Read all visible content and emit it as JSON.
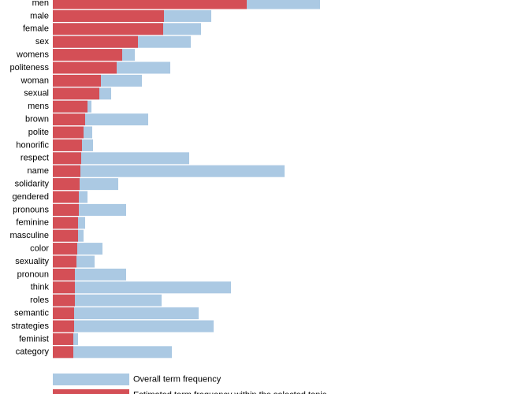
{
  "chart_data": {
    "type": "bar",
    "orientation": "horizontal",
    "categories": [
      "men",
      "male",
      "female",
      "sex",
      "womens",
      "politeness",
      "woman",
      "sexual",
      "mens",
      "brown",
      "polite",
      "honorific",
      "respect",
      "name",
      "solidarity",
      "gendered",
      "pronouns",
      "feminine",
      "masculine",
      "color",
      "sexuality",
      "pronoun",
      "think",
      "roles",
      "semantic",
      "strategies",
      "feminist",
      "category"
    ],
    "series": [
      {
        "name": "Overall term frequency",
        "color": "#abc9e3",
        "values": [
          339,
          201,
          188,
          175,
          104,
          149,
          113,
          74,
          49,
          121,
          50,
          51,
          173,
          294,
          83,
          44,
          93,
          41,
          39,
          63,
          53,
          93,
          226,
          138,
          185,
          204,
          32,
          151
        ]
      },
      {
        "name": "Estimated term frequency within the selected topic",
        "color": "#d44f56",
        "values": [
          246,
          141,
          140,
          108,
          88,
          81,
          61,
          59,
          44,
          41,
          39,
          37,
          36,
          35,
          34,
          33,
          33,
          32,
          32,
          31,
          30,
          28,
          28,
          28,
          27,
          27,
          26,
          26
        ]
      }
    ],
    "xlim": [
      0,
      339
    ]
  }
}
